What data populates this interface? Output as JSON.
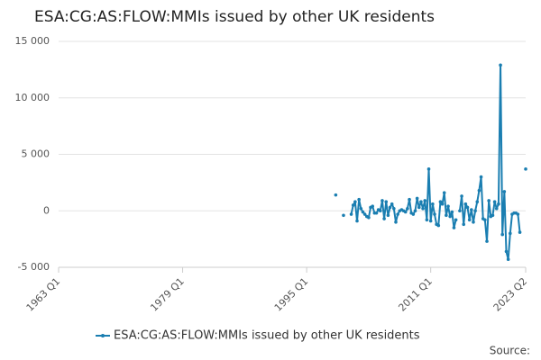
{
  "chart_data": {
    "type": "line",
    "title": "ESA:CG:AS:FLOW:MMIs issued by other UK residents",
    "source": "Source:",
    "x": [
      "1998 Q4",
      "1999 Q1",
      "1999 Q2",
      "1999 Q3",
      "1999 Q4",
      "2000 Q1",
      "2000 Q2",
      "2000 Q3",
      "2000 Q4",
      "2001 Q1",
      "2001 Q2",
      "2001 Q3",
      "2001 Q4",
      "2002 Q1",
      "2002 Q2",
      "2002 Q3",
      "2002 Q4",
      "2003 Q1",
      "2003 Q2",
      "2003 Q3",
      "2003 Q4",
      "2004 Q1",
      "2004 Q2",
      "2004 Q3",
      "2004 Q4",
      "2005 Q1",
      "2005 Q2",
      "2005 Q3",
      "2005 Q4",
      "2006 Q1",
      "2006 Q2",
      "2006 Q3",
      "2006 Q4",
      "2007 Q1",
      "2007 Q2",
      "2007 Q3",
      "2007 Q4",
      "2008 Q1",
      "2008 Q2",
      "2008 Q3",
      "2008 Q4",
      "2009 Q1",
      "2009 Q2",
      "2009 Q3",
      "2009 Q4",
      "2010 Q1",
      "2010 Q2",
      "2010 Q3",
      "2010 Q4",
      "2011 Q1",
      "2011 Q2",
      "2011 Q3",
      "2011 Q4",
      "2012 Q1",
      "2012 Q2",
      "2012 Q3",
      "2012 Q4",
      "2013 Q1",
      "2013 Q2",
      "2013 Q3",
      "2013 Q4",
      "2014 Q1",
      "2014 Q2",
      "2014 Q3",
      "2014 Q4",
      "2015 Q1",
      "2015 Q2",
      "2015 Q3",
      "2015 Q4",
      "2016 Q1",
      "2016 Q2",
      "2016 Q3",
      "2016 Q4",
      "2017 Q1",
      "2017 Q2",
      "2017 Q3",
      "2017 Q4",
      "2018 Q1",
      "2018 Q2",
      "2018 Q3",
      "2018 Q4",
      "2019 Q1",
      "2019 Q2",
      "2019 Q3",
      "2019 Q4",
      "2020 Q1",
      "2020 Q2",
      "2020 Q3",
      "2020 Q4",
      "2021 Q1",
      "2021 Q2",
      "2021 Q3",
      "2021 Q4",
      "2022 Q1",
      "2022 Q2",
      "2022 Q3",
      "2022 Q4",
      "2023 Q1",
      "2023 Q2"
    ],
    "series": [
      {
        "name": "ESA:CG:AS:FLOW:MMIs issued by other UK residents",
        "color": "#1a7eb1",
        "values": [
          1400,
          null,
          null,
          null,
          -400,
          null,
          null,
          null,
          -300,
          500,
          800,
          -900,
          1000,
          200,
          -100,
          -300,
          -500,
          -600,
          300,
          400,
          -200,
          -200,
          100,
          0,
          900,
          -700,
          800,
          -400,
          300,
          600,
          200,
          -1000,
          -300,
          0,
          100,
          0,
          -100,
          200,
          1000,
          -200,
          -300,
          0,
          1100,
          300,
          800,
          200,
          900,
          -800,
          3700,
          -900,
          600,
          -300,
          -1200,
          -1300,
          800,
          600,
          1600,
          -400,
          400,
          -500,
          -100,
          -1500,
          -800,
          null,
          0,
          1300,
          -1200,
          600,
          300,
          -800,
          100,
          -1000,
          0,
          800,
          1800,
          3000,
          -700,
          -800,
          -2700,
          900,
          -500,
          -400,
          800,
          200,
          600,
          12900,
          -2100,
          1700,
          -3600,
          -4300,
          -2000,
          -300,
          -200,
          -200,
          -300,
          -1900,
          null,
          null,
          3700
        ]
      }
    ],
    "xlim": [
      "1963 Q1",
      "2023 Q2"
    ],
    "xticks": [
      "1963 Q1",
      "1979 Q1",
      "1995 Q1",
      "2011 Q1",
      "2023 Q2"
    ],
    "ylim": [
      -5000,
      15000
    ],
    "yticks": [
      {
        "value": -5000,
        "label": "-5 000"
      },
      0,
      {
        "value": 5000,
        "label": "5 000"
      },
      {
        "value": 10000,
        "label": "10 000"
      },
      {
        "value": 15000,
        "label": "15 000"
      }
    ],
    "grid": true
  }
}
